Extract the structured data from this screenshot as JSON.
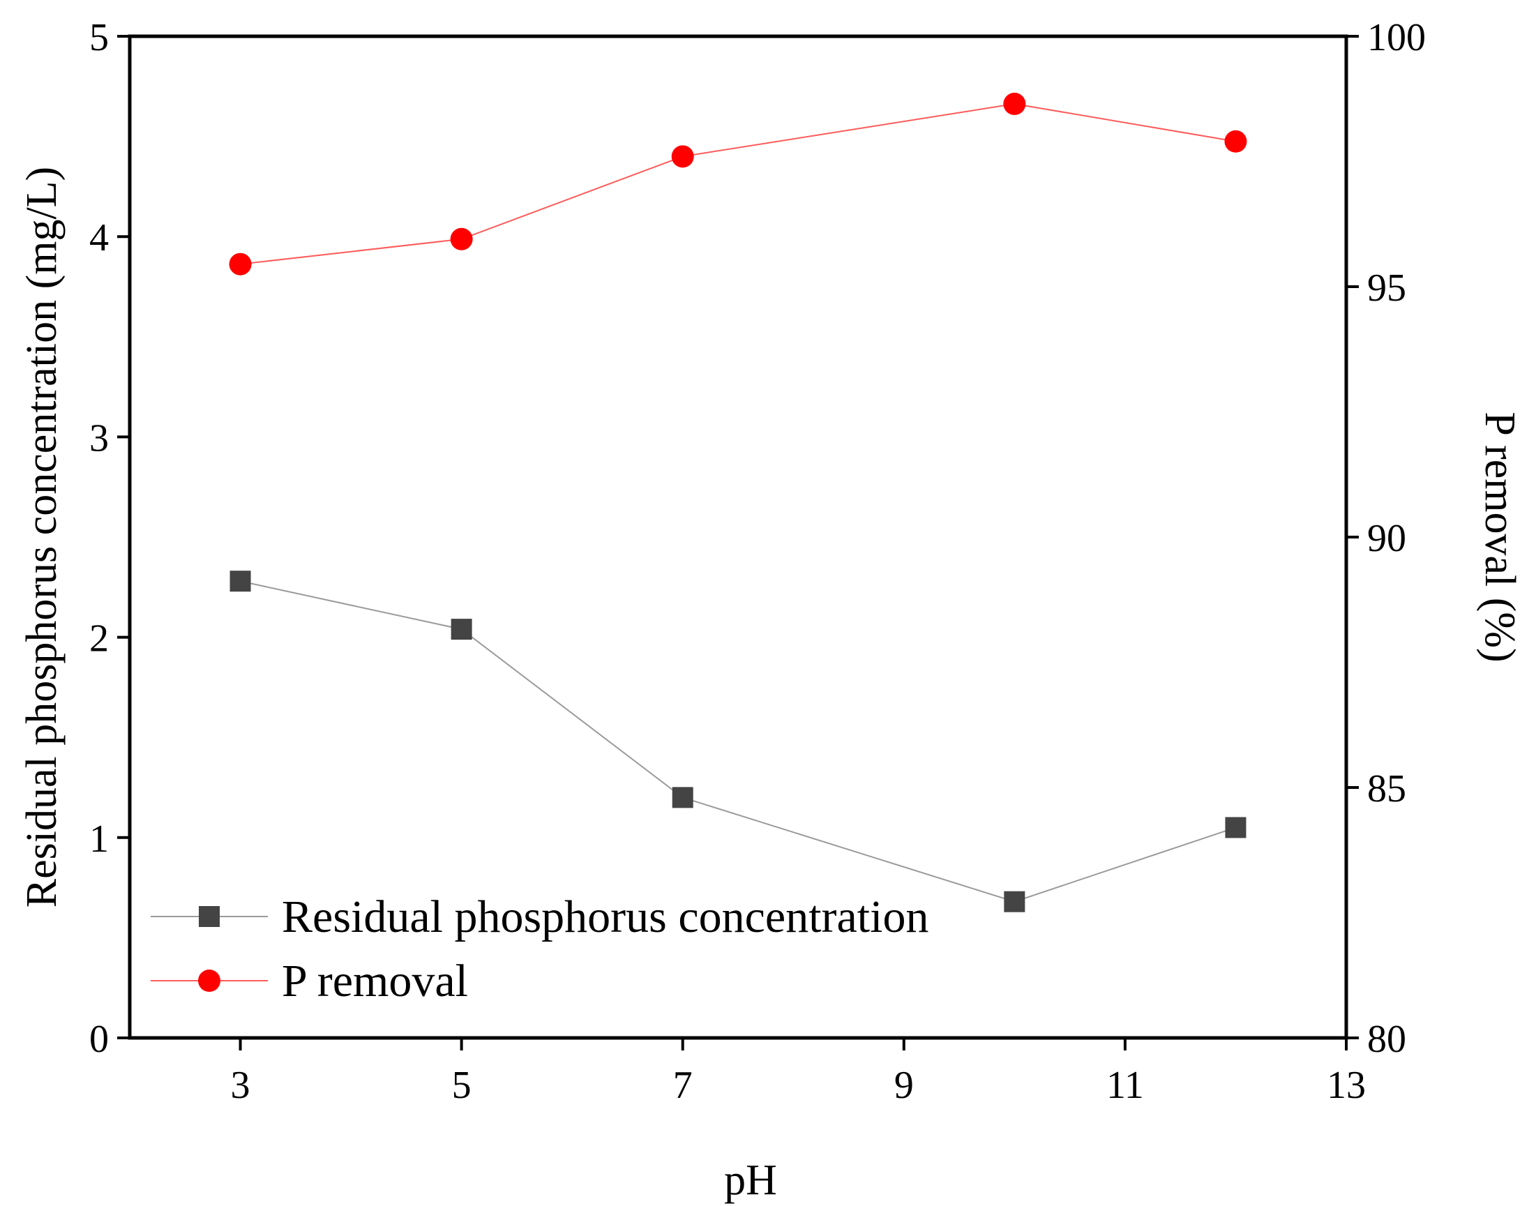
{
  "chart_data": {
    "type": "line",
    "title": "",
    "xlabel": "pH",
    "ylabel_left": "Residual phosphorus concentration (mg/L)",
    "ylabel_right": "P removal (%)",
    "xlim": [
      2,
      13
    ],
    "ylim_left": [
      0,
      5
    ],
    "ylim_right": [
      80,
      100
    ],
    "x_ticks": [
      3,
      5,
      7,
      9,
      11,
      13
    ],
    "y_left_ticks": [
      0,
      1,
      2,
      3,
      4,
      5
    ],
    "y_right_ticks": [
      80,
      85,
      90,
      95,
      100
    ],
    "grid": false,
    "legend_position": "bottom-left",
    "series": [
      {
        "name": "Residual phosphorus concentration",
        "axis": "left",
        "marker": "square",
        "color": "#444444",
        "line_color": "#9a9a9a",
        "x": [
          3,
          5,
          7,
          10,
          12
        ],
        "values": [
          2.28,
          2.04,
          1.2,
          0.68,
          1.05
        ]
      },
      {
        "name": "P removal",
        "axis": "right",
        "marker": "circle",
        "color": "#ff0000",
        "line_color": "#ff5a5a",
        "x": [
          3,
          5,
          7,
          10,
          12
        ],
        "values": [
          95.45,
          95.95,
          97.6,
          98.65,
          97.9
        ]
      }
    ]
  }
}
